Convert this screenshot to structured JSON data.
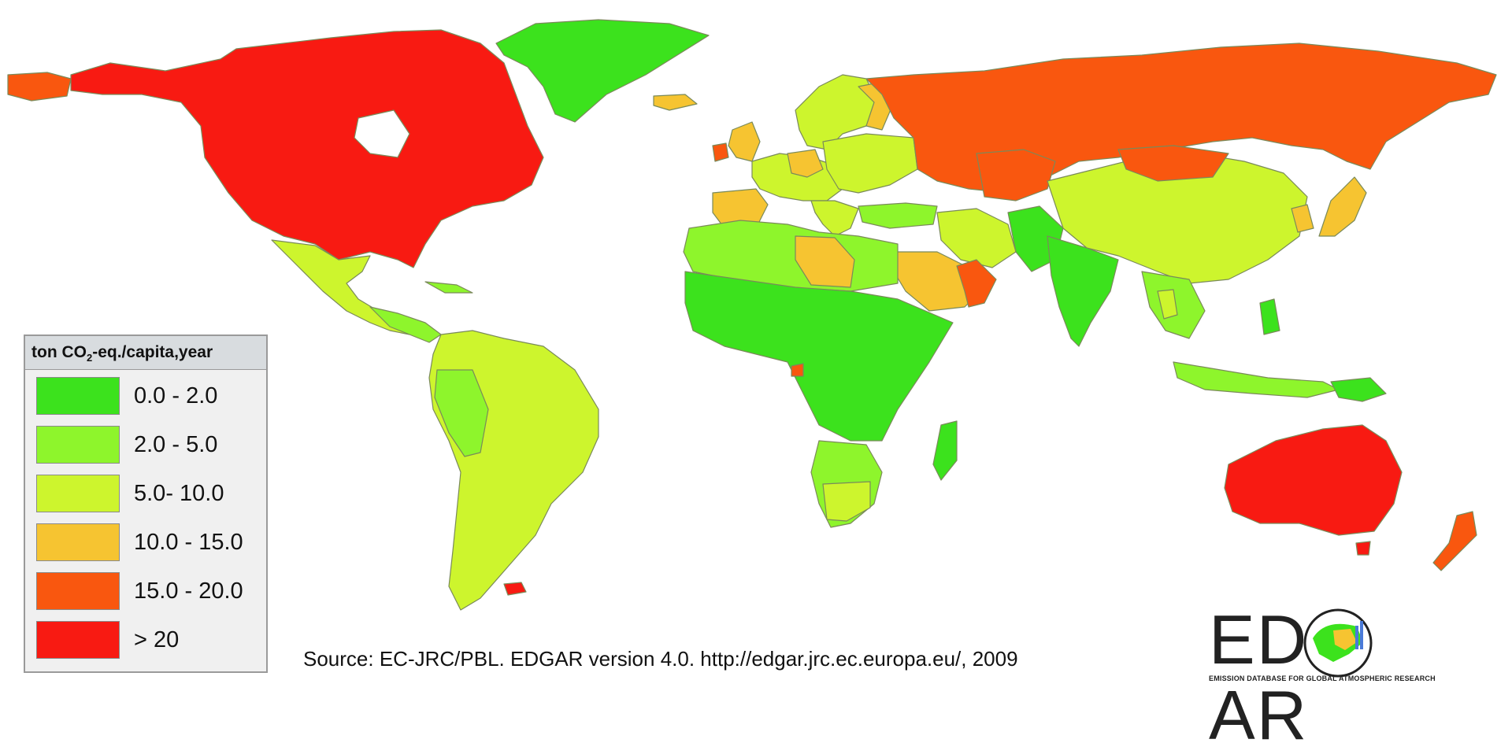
{
  "legend": {
    "title_prefix": "ton CO",
    "title_sub": "2",
    "title_suffix": "-eq./capita,year",
    "items": [
      {
        "label": "0.0 - 2.0",
        "color": "#3ce21d"
      },
      {
        "label": "2.0 - 5.0",
        "color": "#8ef52c"
      },
      {
        "label": "5.0- 10.0",
        "color": "#cdf52d"
      },
      {
        "label": "10.0 - 15.0",
        "color": "#f6c431"
      },
      {
        "label": "15.0 - 20.0",
        "color": "#f9570f"
      },
      {
        "label": "> 20",
        "color": "#f81a12"
      }
    ]
  },
  "source_text": "Source: EC-JRC/PBL. EDGAR version 4.0. http://edgar.jrc.ec.europa.eu/, 2009",
  "logo": {
    "word": "EDGAR",
    "tagline": "EMISSION DATABASE FOR GLOBAL ATMOSPHERIC RESEARCH"
  },
  "map_categories": {
    "north_america": "> 20",
    "australia": "> 20",
    "greenland": "0.0 - 2.0",
    "russia": "15.0 - 20.0",
    "china": "5.0- 10.0",
    "india": "0.0 - 2.0",
    "africa": "0.0 - 2.0",
    "south_america": "5.0- 10.0",
    "europe": "5.0- 10.0",
    "saudi_arabia": "10.0 - 15.0",
    "japan": "10.0 - 15.0",
    "new_zealand": "15.0 - 20.0"
  }
}
